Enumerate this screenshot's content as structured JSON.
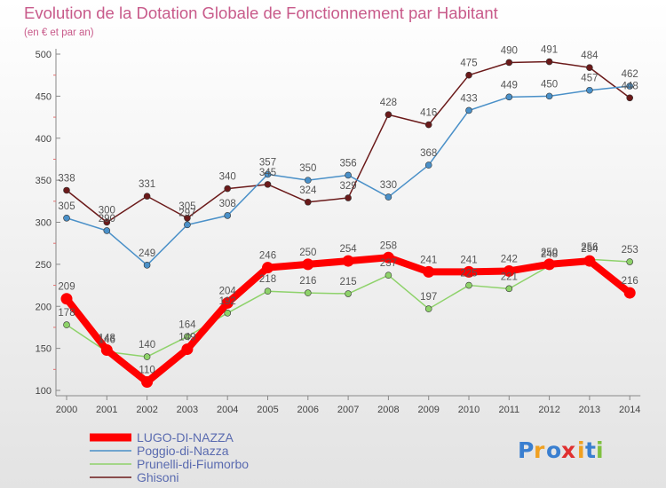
{
  "chart_data": {
    "type": "line",
    "title": "Evolution de la Dotation Globale de Fonctionnement par Habitant",
    "subtitle": "(en € et par an)",
    "categories": [
      "2000",
      "2001",
      "2002",
      "2003",
      "2004",
      "2005",
      "2006",
      "2007",
      "2008",
      "2009",
      "2010",
      "2011",
      "2012",
      "2013",
      "2014"
    ],
    "y_ticks": [
      "100",
      "150",
      "200",
      "250",
      "300",
      "350",
      "400",
      "450",
      "500"
    ],
    "ylim": [
      100,
      500
    ],
    "grid": false,
    "legend_position": "bottom-left",
    "series": [
      {
        "name": "Ghisoni",
        "color": "#6b1a1a",
        "values": [
          338,
          300,
          331,
          305,
          340,
          345,
          324,
          329,
          428,
          416,
          475,
          490,
          491,
          484,
          448
        ],
        "labels": [
          "338",
          "300",
          "331",
          "305",
          "340",
          "345",
          "324",
          "329",
          "428",
          "416",
          "475",
          "490",
          "491",
          "484",
          "448"
        ]
      },
      {
        "name": "Poggio-di-Nazza",
        "color": "#4a90c8",
        "values": [
          305,
          290,
          249,
          297,
          308,
          357,
          350,
          356,
          330,
          368,
          433,
          449,
          450,
          457,
          462
        ],
        "labels": [
          "305",
          "290",
          "249",
          "297",
          "308",
          "357",
          "350",
          "356",
          "330",
          "368",
          "433",
          "449",
          "450",
          "457",
          "462"
        ]
      },
      {
        "name": "Prunelli-di-Fiumorbo",
        "color": "#8ed26a",
        "values": [
          178,
          146,
          140,
          164,
          192,
          218,
          216,
          215,
          237,
          197,
          225,
          221,
          248,
          256,
          253
        ],
        "labels": [
          "178",
          "146",
          "140",
          "164",
          "192",
          "218",
          "216",
          "215",
          "237",
          "197",
          "225",
          "221",
          "248",
          "256",
          "253"
        ]
      },
      {
        "name": "LUGO-DI-NAZZA",
        "color": "#ff0000",
        "values": [
          209,
          148,
          110,
          149,
          204,
          246,
          250,
          254,
          258,
          241,
          241,
          242,
          250,
          254,
          216
        ],
        "labels": [
          "209",
          "148",
          "110",
          "149",
          "204",
          "246",
          "250",
          "254",
          "258",
          "241",
          "241",
          "242",
          "250",
          "254",
          "216"
        ]
      }
    ],
    "legend": [
      {
        "name": "LUGO-DI-NAZZA",
        "color": "#ff0000"
      },
      {
        "name": "Poggio-di-Nazza",
        "color": "#4a90c8"
      },
      {
        "name": "Prunelli-di-Fiumorbo",
        "color": "#8ed26a"
      },
      {
        "name": "Ghisoni",
        "color": "#6b1a1a"
      }
    ],
    "logo": "Proxiti"
  }
}
